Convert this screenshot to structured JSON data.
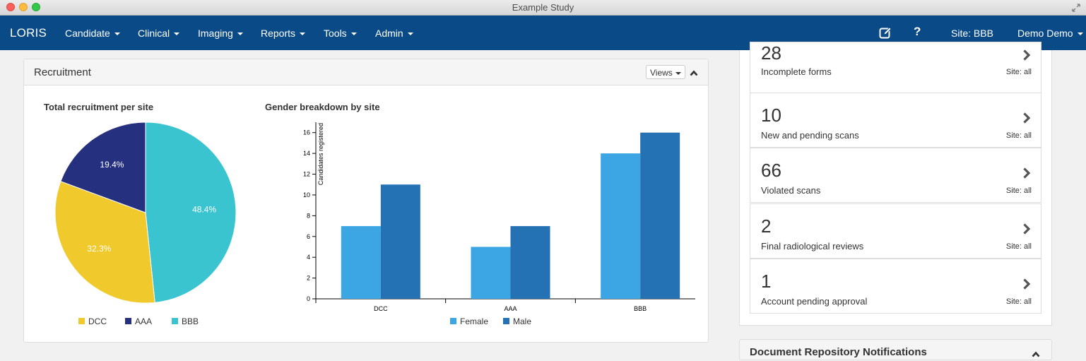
{
  "window": {
    "title": "Example Study"
  },
  "navbar": {
    "brand": "LORIS",
    "menus": [
      {
        "label": "Candidate"
      },
      {
        "label": "Clinical"
      },
      {
        "label": "Imaging"
      },
      {
        "label": "Reports"
      },
      {
        "label": "Tools"
      },
      {
        "label": "Admin"
      }
    ],
    "help": "?",
    "site": "Site: BBB",
    "user": "Demo Demo",
    "icons": [
      "edit-icon",
      "help-icon"
    ],
    "background_color": "#0a4a87"
  },
  "recruitment": {
    "title": "Recruitment",
    "views_label": "Views"
  },
  "chart_data": [
    {
      "type": "pie",
      "title": "Total recruitment per site",
      "categories": [
        "DCC",
        "AAA",
        "BBB"
      ],
      "values": [
        32.3,
        19.4,
        48.4
      ],
      "labels": [
        "32.3%",
        "19.4%",
        "48.4%"
      ],
      "colors": [
        "#f0c92d",
        "#25307e",
        "#3ac4cf"
      ],
      "legend": "bottom"
    },
    {
      "type": "bar",
      "title": "Gender breakdown by site",
      "categories": [
        "DCC",
        "AAA",
        "BBB"
      ],
      "series": [
        {
          "name": "Female",
          "values": [
            7,
            5,
            14
          ],
          "color": "#3ba6e3"
        },
        {
          "name": "Male",
          "values": [
            11,
            7,
            16
          ],
          "color": "#2472b4"
        }
      ],
      "ylabel": "Candidates registered",
      "ylim": [
        0,
        17
      ],
      "yticks": [
        "0",
        "2",
        "4",
        "6",
        "8",
        "10",
        "12",
        "14",
        "16"
      ],
      "legend": "bottom"
    }
  ],
  "stats": [
    {
      "count": "28",
      "label": "Incomplete forms",
      "site": "Site: all"
    },
    {
      "count": "10",
      "label": "New and pending scans",
      "site": "Site: all"
    },
    {
      "count": "66",
      "label": "Violated scans",
      "site": "Site: all"
    },
    {
      "count": "2",
      "label": "Final radiological reviews",
      "site": "Site: all"
    },
    {
      "count": "1",
      "label": "Account pending approval",
      "site": "Site: all"
    }
  ],
  "document_panel": {
    "title": "Document Repository Notifications"
  }
}
